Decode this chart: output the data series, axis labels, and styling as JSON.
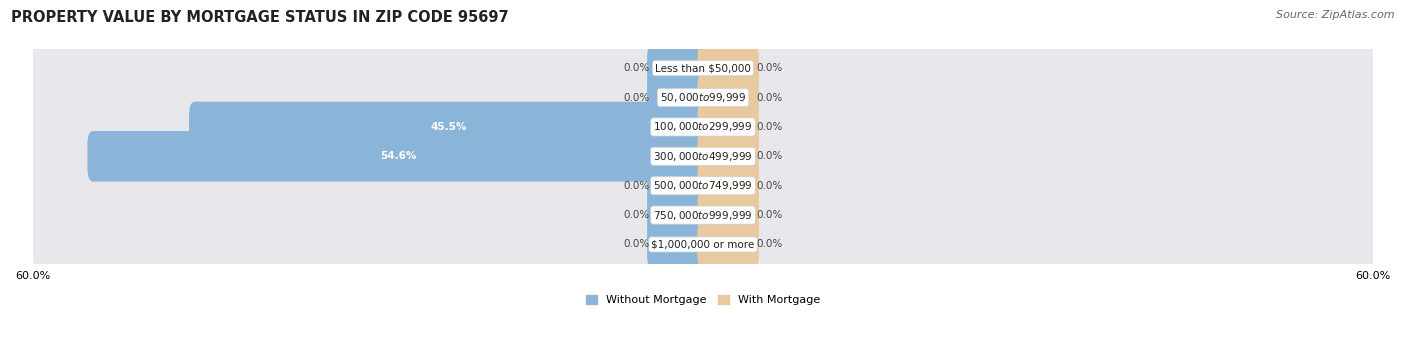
{
  "title": "PROPERTY VALUE BY MORTGAGE STATUS IN ZIP CODE 95697",
  "source": "Source: ZipAtlas.com",
  "categories": [
    "Less than $50,000",
    "$50,000 to $99,999",
    "$100,000 to $299,999",
    "$300,000 to $499,999",
    "$500,000 to $749,999",
    "$750,000 to $999,999",
    "$1,000,000 or more"
  ],
  "without_mortgage": [
    0.0,
    0.0,
    45.5,
    54.6,
    0.0,
    0.0,
    0.0
  ],
  "with_mortgage": [
    0.0,
    0.0,
    0.0,
    0.0,
    0.0,
    0.0,
    0.0
  ],
  "without_mortgage_color": "#8ab4d8",
  "with_mortgage_color": "#e8c9a0",
  "row_bg_color": "#e8e8ec",
  "xlim": 60.0,
  "title_fontsize": 10.5,
  "source_fontsize": 8,
  "bar_label_fontsize": 7.5,
  "cat_label_fontsize": 7.5,
  "axis_label_fontsize": 8,
  "legend_fontsize": 8,
  "stub_size": 4.5
}
